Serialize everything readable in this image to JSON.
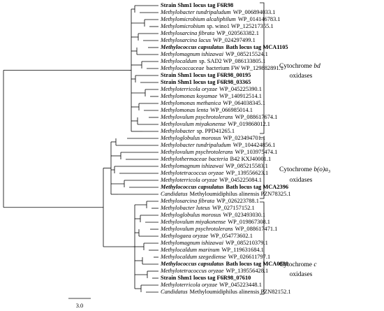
{
  "leaves": [
    {
      "text": "Strain Shm1 locus tag F6R98",
      "bold": true
    },
    {
      "italic": "Methylobacter tundripaludum",
      "text": "WP_006894033.1"
    },
    {
      "italic": "Methylomicrobium alcaliphilum",
      "text": "WP_014146783.1"
    },
    {
      "italic": "Methylomicrobium",
      "text": "sp. wino1 WP_125217355.1"
    },
    {
      "italic": "Methylosarcina fibrata",
      "text": "WP_020563382.1"
    },
    {
      "italic": "Methylosarcina lacus",
      "text": "WP_024297499.1"
    },
    {
      "italic": "Methylococcus capsulatus",
      "text": "Bath locus tag MCA1105",
      "bold": true
    },
    {
      "italic": "Methylomagnum ishizawai",
      "text": "WP_085215524.1"
    },
    {
      "italic": "Methylocaldum",
      "text": "sp. SAD2 WP_086133805.1"
    },
    {
      "italic": "Methylococcaceae",
      "text": "bacterium FW WP_129882891.1"
    },
    {
      "text": "Strain Shm1 locus tag F6R98_00195",
      "bold": true
    },
    {
      "text": "Strain Shm1 locus tag F6R98_03365",
      "bold": true
    },
    {
      "italic": "Methyloterricola oryzae",
      "text": "WP_045225390.1"
    },
    {
      "italic": "Methylomonas koyamae",
      "text": "WP_140912514.1"
    },
    {
      "italic": "Methylomonas methanica",
      "text": "WP_064038345.1"
    },
    {
      "italic": "Methylomonas lenta",
      "text": "WP_066985014.1"
    },
    {
      "italic": "Methylovulum psychrotolerans",
      "text": "WP_088617674.1"
    },
    {
      "italic": "Methylovulum miyakonense",
      "text": "WP_019868012.1"
    },
    {
      "italic": "Methylobacter",
      "text": "sp. PPD41265.1"
    },
    {
      "italic": "Methyloglobulus morosus",
      "text": "WP_023494701.1"
    },
    {
      "italic": "Methylobacter tundripaludum",
      "text": "WP_104424856.1"
    },
    {
      "italic": "Methylovulum psychrotolerans",
      "text": "WP_103975474.1"
    },
    {
      "italic": "Methylothermaceae bacteria",
      "text": "B42 KXJ40001.1"
    },
    {
      "italic": "Methylomagnum ishizawai",
      "text": "WP_085215583.1"
    },
    {
      "italic": "Methylotetracoccus oryzae",
      "text": "WP_139556623.1"
    },
    {
      "italic": "Methyloterricola oryzae",
      "text": "WP_045225084.1"
    },
    {
      "italic": "Methylococcus capsulatus",
      "text": "Bath locus tag MCA2396",
      "bold": true
    },
    {
      "italic": "Candidatus",
      "text": "Methyloumidiphilus alinensis PZN78325.1"
    },
    {
      "italic": "Methylosarcina fibrata",
      "text": "WP_026223788.1"
    },
    {
      "italic": "Methylobacter luteus",
      "text": "WP_027157152.1"
    },
    {
      "italic": "Methyloglobulus morosus",
      "text": "WP_023493030.1"
    },
    {
      "italic": "Methylovulum miyakonense",
      "text": "WP_019867308.1"
    },
    {
      "italic": "Methylovulum psychrotolerans",
      "text": "WP_088617471.1"
    },
    {
      "italic": "Methylogaea oryzae",
      "text": "WP_054773602.1"
    },
    {
      "italic": "Methylomagnum ishizawai",
      "text": "WP_085210379.1"
    },
    {
      "italic": "Methylocaldum marinum",
      "text": "WP_119631684.1"
    },
    {
      "italic": "Methylocaldum szegediense",
      "text": "WP_026611797.1"
    },
    {
      "italic": "Methylococcus capsulatus",
      "text": "Bath locus tag MCA0880",
      "bold": true
    },
    {
      "italic": "Methylotetracoccus oryzae",
      "text": "WP_139556428.1"
    },
    {
      "text": "Strain Shm1 locus tag F6R98_07610",
      "bold": true
    },
    {
      "italic": "Methyloterricola oryzae",
      "text": "WP_045223448.1"
    },
    {
      "italic": "Candidatus",
      "text": "Methyloumidiphilus alinensis PZN82152.1"
    }
  ],
  "groups": [
    {
      "title": [
        {
          "t": "Cytochrome "
        },
        {
          "t": "bd",
          "i": true
        }
      ],
      "subtitle": "oxidases"
    },
    {
      "title": [
        {
          "t": "Cytochrome "
        },
        {
          "t": "b(o)a",
          "i": true
        },
        {
          "t": "3",
          "sub": true
        }
      ],
      "subtitle": "oxidases"
    },
    {
      "title": [
        {
          "t": "Cytochrome "
        },
        {
          "t": "c",
          "i": true
        }
      ],
      "subtitle": "oxidases"
    }
  ],
  "scale_label": "3.0"
}
